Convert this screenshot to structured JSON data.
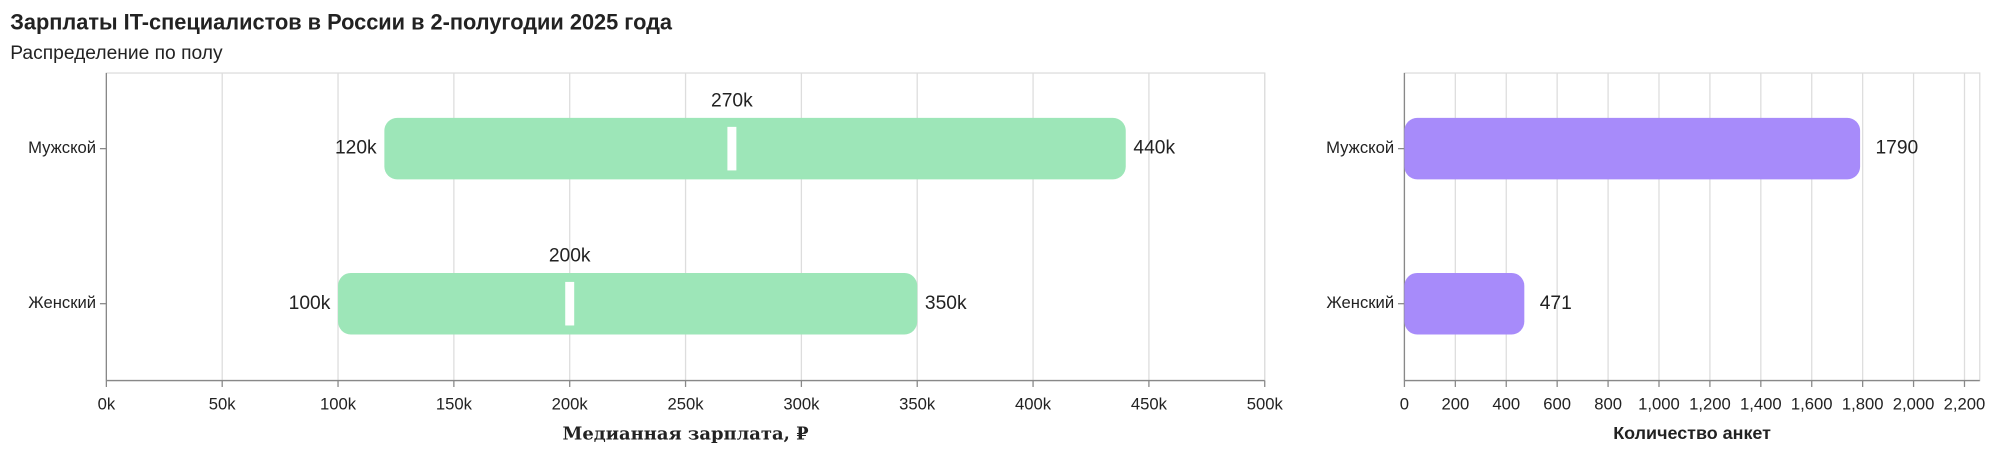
{
  "chart_data": [
    {
      "type": "range",
      "title": "Зарплаты IT-специалистов в России в 2-полугодии 2025 года",
      "subtitle": "Распределение по полу",
      "categories": [
        "Мужской",
        "Женский"
      ],
      "ranges": [
        {
          "low": 120000,
          "low_label": "120k",
          "median": 270000,
          "median_label": "270k",
          "high": 440000,
          "high_label": "440k"
        },
        {
          "low": 100000,
          "low_label": "100k",
          "median": 200000,
          "median_label": "200k",
          "high": 350000,
          "high_label": "350k"
        }
      ],
      "color": "#9de6b8",
      "median_color": "#ffffff",
      "xlabel": "Медианная зарплата, ₽",
      "xlim": [
        0,
        500000
      ],
      "xticks": [
        {
          "value": 0,
          "label": "0k"
        },
        {
          "value": 50000,
          "label": "50k"
        },
        {
          "value": 100000,
          "label": "100k"
        },
        {
          "value": 150000,
          "label": "150k"
        },
        {
          "value": 200000,
          "label": "200k"
        },
        {
          "value": 250000,
          "label": "250k"
        },
        {
          "value": 300000,
          "label": "300k"
        },
        {
          "value": 350000,
          "label": "350k"
        },
        {
          "value": 400000,
          "label": "400k"
        },
        {
          "value": 450000,
          "label": "450k"
        },
        {
          "value": 500000,
          "label": "500k"
        }
      ],
      "grid": true
    },
    {
      "type": "hbar",
      "categories": [
        "Мужской",
        "Женский"
      ],
      "values": [
        1790,
        471
      ],
      "color": "#a78bfa",
      "xlabel": "Количество анкет",
      "xlim": [
        0,
        2260
      ],
      "xticks": [
        0,
        200,
        400,
        600,
        800,
        {
          "value": 1000,
          "label": "1,000"
        },
        {
          "value": 1200,
          "label": "1,200"
        },
        {
          "value": 1400,
          "label": "1,400"
        },
        {
          "value": 1600,
          "label": "1,600"
        },
        {
          "value": 1800,
          "label": "1,800"
        },
        {
          "value": 2000,
          "label": "2,000"
        },
        {
          "value": 2200,
          "label": "2,200"
        }
      ],
      "grid": true
    }
  ]
}
